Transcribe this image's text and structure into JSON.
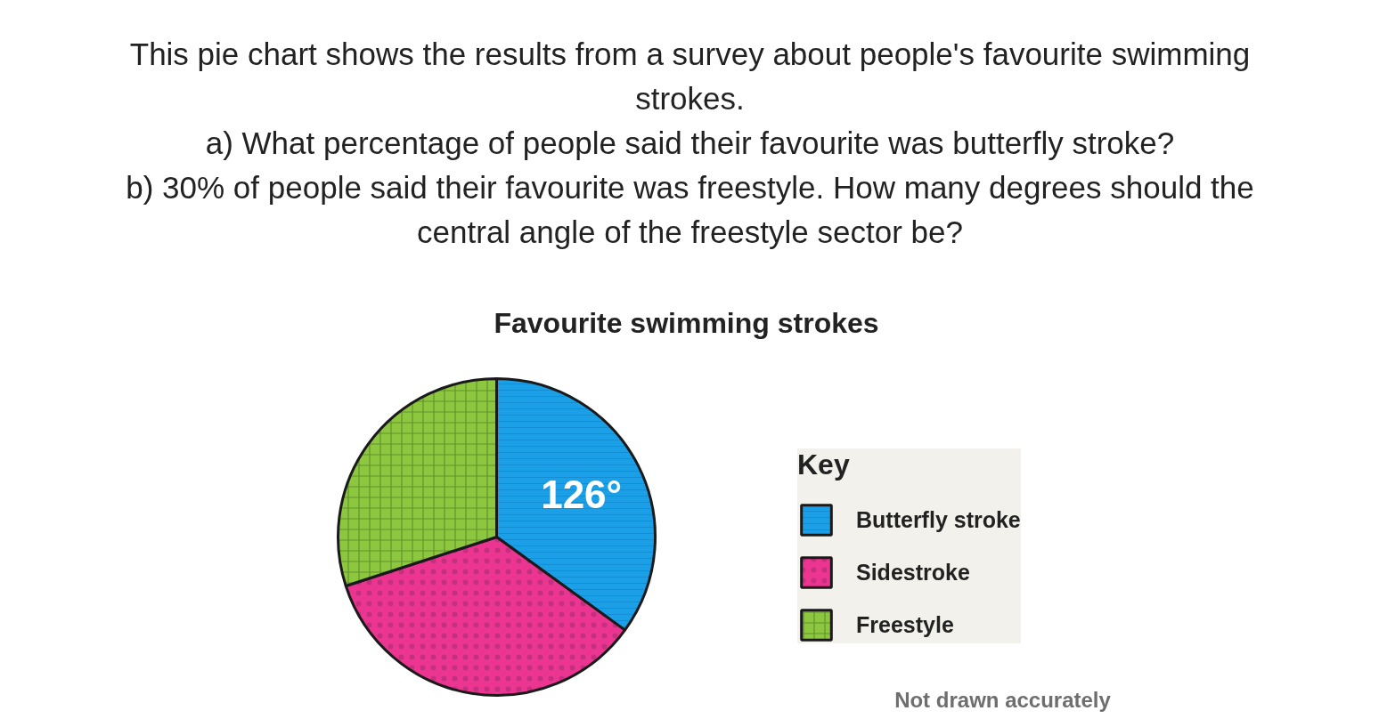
{
  "chart_data": {
    "type": "pie",
    "title": "Favourite swimming strokes",
    "annotations": [
      "This pie chart shows the results from a survey about people's favourite swimming strokes.",
      "a) What percentage of people said their favourite was butterfly stroke?",
      "b) 30% of people said their favourite was freestyle. How many degrees should the central angle of the freestyle sector be?",
      "Not drawn accurately"
    ],
    "categories": [
      "Butterfly stroke",
      "Sidestroke",
      "Freestyle"
    ],
    "values": [
      126,
      126,
      108
    ],
    "colors": [
      "#1ba0e8",
      "#ec3591",
      "#8dc63f"
    ],
    "value_labels": [
      "126°",
      null,
      null
    ],
    "legend": "right",
    "legend_title": "Key"
  }
}
